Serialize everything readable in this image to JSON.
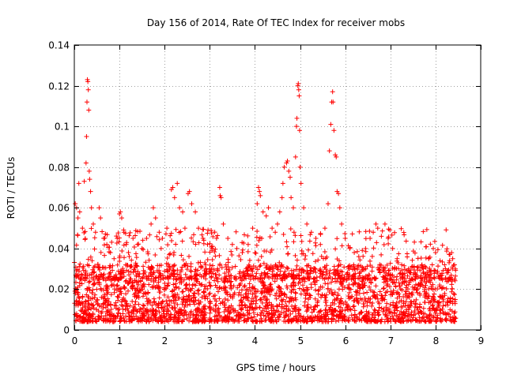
{
  "chart_data": {
    "type": "scatter",
    "title": "Day 156 of 2014, Rate Of TEC Index for receiver mobs",
    "xlabel": "GPS time / hours",
    "ylabel": "ROTI / TECUs",
    "xlim": [
      0,
      9
    ],
    "ylim": [
      0,
      0.14
    ],
    "xticks": [
      "0",
      "1",
      "2",
      "3",
      "4",
      "5",
      "6",
      "7",
      "8",
      "9"
    ],
    "yticks": [
      "0",
      "0.02",
      "0.04",
      "0.06",
      "0.08",
      "0.1",
      "0.12",
      "0.14"
    ],
    "grid": true,
    "marker": "+",
    "color": "#ff0000",
    "series": [
      {
        "name": "ROTI",
        "points": [
          [
            0.02,
            0.062
          ],
          [
            0.05,
            0.06
          ],
          [
            0.08,
            0.055
          ],
          [
            0.1,
            0.072
          ],
          [
            0.12,
            0.058
          ],
          [
            0.18,
            0.05
          ],
          [
            0.22,
            0.073
          ],
          [
            0.26,
            0.082
          ],
          [
            0.27,
            0.095
          ],
          [
            0.28,
            0.112
          ],
          [
            0.29,
            0.123
          ],
          [
            0.3,
            0.122
          ],
          [
            0.31,
            0.118
          ],
          [
            0.32,
            0.108
          ],
          [
            0.33,
            0.078
          ],
          [
            0.34,
            0.074
          ],
          [
            0.36,
            0.068
          ],
          [
            0.38,
            0.06
          ],
          [
            0.42,
            0.052
          ],
          [
            0.47,
            0.048
          ],
          [
            0.55,
            0.06
          ],
          [
            0.58,
            0.055
          ],
          [
            0.65,
            0.045
          ],
          [
            0.72,
            0.042
          ],
          [
            0.8,
            0.038
          ],
          [
            0.88,
            0.035
          ],
          [
            0.95,
            0.045
          ],
          [
            1.0,
            0.057
          ],
          [
            1.02,
            0.058
          ],
          [
            1.05,
            0.055
          ],
          [
            1.1,
            0.048
          ],
          [
            1.15,
            0.042
          ],
          [
            1.2,
            0.038
          ],
          [
            1.3,
            0.045
          ],
          [
            1.4,
            0.042
          ],
          [
            1.5,
            0.04
          ],
          [
            1.6,
            0.045
          ],
          [
            1.7,
            0.052
          ],
          [
            1.75,
            0.06
          ],
          [
            1.8,
            0.055
          ],
          [
            1.88,
            0.048
          ],
          [
            1.95,
            0.045
          ],
          [
            2.05,
            0.05
          ],
          [
            2.15,
            0.069
          ],
          [
            2.18,
            0.07
          ],
          [
            2.22,
            0.065
          ],
          [
            2.28,
            0.072
          ],
          [
            2.33,
            0.06
          ],
          [
            2.4,
            0.058
          ],
          [
            2.45,
            0.05
          ],
          [
            2.52,
            0.067
          ],
          [
            2.55,
            0.068
          ],
          [
            2.6,
            0.062
          ],
          [
            2.68,
            0.058
          ],
          [
            2.75,
            0.05
          ],
          [
            2.85,
            0.045
          ],
          [
            2.95,
            0.042
          ],
          [
            3.05,
            0.04
          ],
          [
            3.15,
            0.045
          ],
          [
            3.22,
            0.07
          ],
          [
            3.23,
            0.066
          ],
          [
            3.25,
            0.065
          ],
          [
            3.3,
            0.052
          ],
          [
            3.4,
            0.045
          ],
          [
            3.5,
            0.042
          ],
          [
            3.6,
            0.04
          ],
          [
            3.72,
            0.038
          ],
          [
            3.85,
            0.042
          ],
          [
            3.95,
            0.05
          ],
          [
            4.05,
            0.062
          ],
          [
            4.08,
            0.07
          ],
          [
            4.1,
            0.068
          ],
          [
            4.12,
            0.066
          ],
          [
            4.18,
            0.058
          ],
          [
            4.25,
            0.056
          ],
          [
            4.3,
            0.06
          ],
          [
            4.38,
            0.05
          ],
          [
            4.45,
            0.048
          ],
          [
            4.5,
            0.052
          ],
          [
            4.55,
            0.058
          ],
          [
            4.6,
            0.065
          ],
          [
            4.62,
            0.072
          ],
          [
            4.65,
            0.08
          ],
          [
            4.7,
            0.082
          ],
          [
            4.72,
            0.083
          ],
          [
            4.75,
            0.078
          ],
          [
            4.78,
            0.075
          ],
          [
            4.8,
            0.065
          ],
          [
            4.85,
            0.06
          ],
          [
            4.9,
            0.085
          ],
          [
            4.92,
            0.1
          ],
          [
            4.93,
            0.104
          ],
          [
            4.95,
            0.12
          ],
          [
            4.96,
            0.121
          ],
          [
            4.97,
            0.118
          ],
          [
            4.98,
            0.115
          ],
          [
            4.99,
            0.098
          ],
          [
            5.0,
            0.08
          ],
          [
            5.02,
            0.072
          ],
          [
            5.08,
            0.06
          ],
          [
            5.15,
            0.052
          ],
          [
            5.25,
            0.048
          ],
          [
            5.35,
            0.045
          ],
          [
            5.45,
            0.042
          ],
          [
            5.55,
            0.05
          ],
          [
            5.62,
            0.062
          ],
          [
            5.65,
            0.088
          ],
          [
            5.68,
            0.101
          ],
          [
            5.7,
            0.112
          ],
          [
            5.72,
            0.117
          ],
          [
            5.73,
            0.112
          ],
          [
            5.75,
            0.098
          ],
          [
            5.78,
            0.086
          ],
          [
            5.8,
            0.085
          ],
          [
            5.82,
            0.068
          ],
          [
            5.85,
            0.067
          ],
          [
            5.88,
            0.06
          ],
          [
            5.92,
            0.052
          ],
          [
            6.0,
            0.045
          ],
          [
            6.1,
            0.04
          ],
          [
            6.2,
            0.038
          ],
          [
            6.3,
            0.036
          ],
          [
            6.45,
            0.04
          ],
          [
            6.55,
            0.045
          ],
          [
            6.62,
            0.048
          ],
          [
            6.68,
            0.052
          ],
          [
            6.72,
            0.05
          ],
          [
            6.8,
            0.046
          ],
          [
            6.88,
            0.052
          ],
          [
            6.95,
            0.045
          ],
          [
            7.05,
            0.04
          ],
          [
            7.15,
            0.035
          ],
          [
            7.25,
            0.032
          ],
          [
            7.4,
            0.03
          ],
          [
            7.55,
            0.028
          ],
          [
            7.7,
            0.032
          ],
          [
            7.85,
            0.035
          ],
          [
            7.95,
            0.04
          ],
          [
            8.0,
            0.038
          ],
          [
            8.1,
            0.034
          ],
          [
            8.2,
            0.032
          ],
          [
            8.3,
            0.033
          ],
          [
            8.38,
            0.035
          ],
          [
            8.42,
            0.032
          ]
        ]
      }
    ],
    "background_cloud": {
      "description_of_generation": "procedural",
      "x_range": [
        0,
        8.45
      ],
      "y_range": [
        0.004,
        0.032
      ],
      "count": 2400,
      "seed": 156
    }
  }
}
